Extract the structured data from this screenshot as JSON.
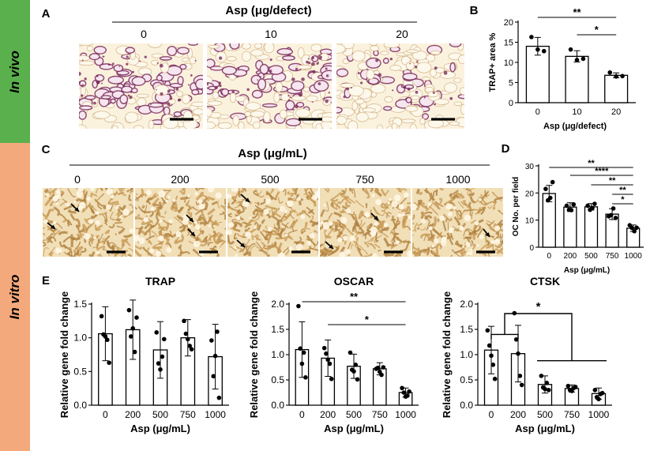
{
  "side_labels": {
    "in_vivo": "In vivo",
    "in_vitro": "In vitro"
  },
  "colors": {
    "in_vivo": "#5ab04c",
    "in_vitro": "#f4a97c",
    "bar_fill": "#ffffff",
    "bar_stroke": "#000000",
    "vivo_tissue": "#f3e4c4",
    "vivo_stain": "#7a2a5a",
    "vitro_tissue": "#ecd7ad",
    "vitro_stain": "#b0813e"
  },
  "panel_A": {
    "letter": "A",
    "header": "Asp (μg/defect)",
    "doses": [
      "0",
      "10",
      "20"
    ]
  },
  "panel_C": {
    "letter": "C",
    "header": "Asp (μg/mL)",
    "doses": [
      "0",
      "200",
      "500",
      "750",
      "1000"
    ]
  },
  "chart_data": [
    {
      "id": "B",
      "letter": "B",
      "type": "bar",
      "categories": [
        "0",
        "10",
        "20"
      ],
      "values": [
        14,
        11.5,
        6.8
      ],
      "errors": [
        2.2,
        1.4,
        0.6
      ],
      "points": [
        [
          16.3,
          13.2,
          12.8
        ],
        [
          13.2,
          10.6,
          10.9
        ],
        [
          7.5,
          6.5,
          6.6
        ]
      ],
      "xlabel": "Asp (μg/defect)",
      "ylabel": "TRAP+ area %",
      "ylim": [
        0,
        20
      ],
      "yticks": [
        0,
        5,
        10,
        15,
        20
      ],
      "significance": [
        {
          "from": 0,
          "to": 2,
          "label": "**"
        },
        {
          "from": 1,
          "to": 2,
          "label": "*"
        }
      ]
    },
    {
      "id": "D",
      "letter": "D",
      "type": "bar",
      "categories": [
        "0",
        "200",
        "500",
        "750",
        "1000"
      ],
      "values": [
        19.8,
        14.8,
        14.9,
        12.2,
        7.0
      ],
      "errors": [
        3.0,
        1.6,
        1.2,
        2.0,
        1.2
      ],
      "points": [
        [
          21.5,
          17.3,
          18.2,
          24.0
        ],
        [
          15.3,
          13.8,
          13.7,
          15.8
        ],
        [
          15.3,
          13.8,
          14.5,
          16.0
        ],
        [
          11.4,
          11.8,
          14.3,
          10.8
        ],
        [
          8.1,
          7.1,
          5.9,
          7.2
        ]
      ],
      "xlabel": "Asp (μg/mL)",
      "ylabel": "OC No. per field",
      "ylim": [
        0,
        30
      ],
      "yticks": [
        0,
        10,
        20,
        30
      ],
      "significance": [
        {
          "from": 0,
          "to": 4,
          "label": "**"
        },
        {
          "from": 1,
          "to": 4,
          "label": "****"
        },
        {
          "from": 2,
          "to": 4,
          "label": "**"
        },
        {
          "from": 3,
          "to": 4,
          "label": "**"
        },
        {
          "from": 3,
          "to": 4,
          "label": "*"
        }
      ]
    },
    {
      "id": "TRAP",
      "letter": "E",
      "type": "bar",
      "title": "TRAP",
      "categories": [
        "0",
        "200",
        "500",
        "750",
        "1000"
      ],
      "values": [
        1.06,
        1.12,
        0.82,
        1.0,
        0.72
      ],
      "errors": [
        0.4,
        0.44,
        0.42,
        0.27,
        0.48
      ],
      "points": [
        [
          1.32,
          1.05,
          1.02,
          0.97,
          0.63
        ],
        [
          1.41,
          1.02,
          1.14,
          0.79,
          1.3
        ],
        [
          1.08,
          0.62,
          0.53,
          0.72,
          0.98
        ],
        [
          1.25,
          1.06,
          0.98,
          0.88,
          0.83
        ],
        [
          0.96,
          0.43,
          0.73,
          1.09,
          0.11
        ]
      ],
      "xlabel": "Asp (μg/mL)",
      "ylabel": "Relative gene fold change",
      "ylim": [
        0,
        1.5
      ],
      "yticks": [
        0.0,
        0.5,
        1.0,
        1.5
      ],
      "significance": []
    },
    {
      "id": "OSCAR",
      "type": "bar",
      "title": "OSCAR",
      "categories": [
        "0",
        "200",
        "500",
        "750",
        "1000"
      ],
      "values": [
        1.1,
        0.93,
        0.77,
        0.72,
        0.25
      ],
      "errors": [
        0.55,
        0.36,
        0.24,
        0.12,
        0.09
      ],
      "points": [
        [
          1.96,
          1.12,
          0.82,
          1.04,
          0.55
        ],
        [
          1.13,
          1.02,
          0.9,
          0.82,
          0.52
        ],
        [
          1.04,
          0.7,
          0.67,
          0.8,
          0.51
        ],
        [
          0.72,
          0.74,
          0.66,
          0.6,
          0.75
        ],
        [
          0.34,
          0.25,
          0.17,
          0.19,
          0.27
        ]
      ],
      "xlabel": "Asp (μg/mL)",
      "ylabel": "Relative gene fold change",
      "ylim": [
        0,
        2.0
      ],
      "yticks": [
        0.0,
        0.5,
        1.0,
        1.5,
        2.0
      ],
      "significance": [
        {
          "from": 0,
          "to": 4,
          "label": "**"
        },
        {
          "from": 1,
          "to": 4,
          "label": "*"
        }
      ]
    },
    {
      "id": "CTSK",
      "type": "bar",
      "title": "CTSK",
      "categories": [
        "0",
        "200",
        "500",
        "750",
        "1000"
      ],
      "values": [
        1.09,
        1.02,
        0.41,
        0.33,
        0.23
      ],
      "errors": [
        0.47,
        0.56,
        0.17,
        0.07,
        0.11
      ],
      "points": [
        [
          1.48,
          1.18,
          0.98,
          0.8,
          0.52
        ],
        [
          1.82,
          1.3,
          1.02,
          0.58,
          0.4
        ],
        [
          0.58,
          0.35,
          0.32,
          0.44,
          0.3
        ],
        [
          0.38,
          0.3,
          0.28,
          0.34,
          0.36
        ],
        [
          0.3,
          0.16,
          0.12,
          0.22,
          0.24
        ]
      ],
      "xlabel": "Asp (μg/mL)",
      "ylabel": "Relative gene fold change",
      "ylim": [
        0,
        2.0
      ],
      "yticks": [
        0.0,
        0.5,
        1.0,
        1.5,
        2.0
      ],
      "significance": [
        {
          "group_from": [
            0,
            1
          ],
          "group_to": [
            2,
            3,
            4
          ],
          "label": "*"
        }
      ]
    }
  ]
}
